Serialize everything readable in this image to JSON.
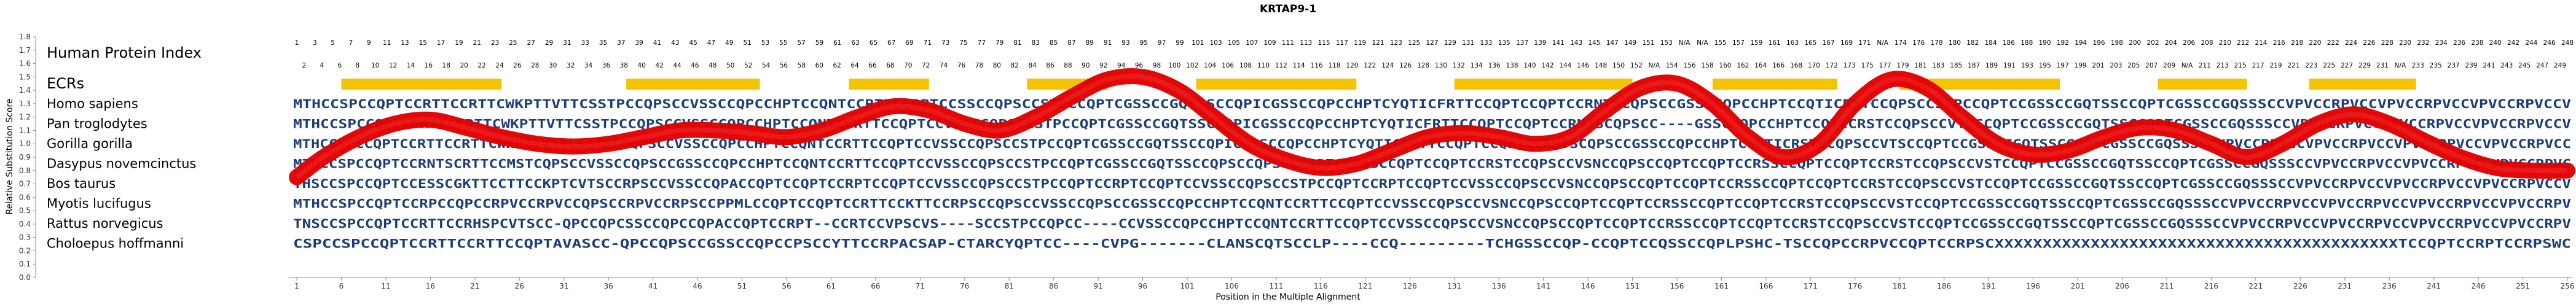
{
  "title": "KRTAP9-1",
  "index_label": "Human Protein Index",
  "ecrs_label": "ECRs",
  "species": [
    {
      "name": "Homo sapiens",
      "seq": "MTHCCSPCCQPTCCRTTCCRTTCWKPTTVTTCSSTPCCQPSCCVSSCCQPCCHPTCCQNTCCRTTCCQPTCCSSCCQPSCCSTPCCQPTCGSSCCGQTSSCCQPICGSSCCQPCCHPTCYQTICFRTTCCQPTCCQPTCCRNTSCQPSCCGSSCCQPCCHPTCCQTICRSTCCQPSCCSTPCCQPTCCGSSCCGQTSSCCQPTCGSSCCGQSSSCCVPVCCRPVCCVPVCCRPVCCVPVCCRPVCCV"
    },
    {
      "name": "Pan troglodytes",
      "seq": "MTHCCSPCCQPTCCRTTCCRTTCWKPTTVTTCSSTPCCQPSCCVSSCCQPCCHPTCCQNTCCRTTCCQPTCCVSSCCQPSCCSTPCCQPTCGSSCCGQTSSCCQPICGSSCCQPCCHPTCYQTICFRTTCCQPTCCQPTCCRNTSCQPSCC----GSSCCQPCCHPTCCQTICRSTCCQPSCCVTSCCQPTCCGSSCCGQTSSCCQPTCGSSCCGQSSSCCVPVCCRPVCCVPVCCRPVCCVPVCCRPVCCV"
    },
    {
      "name": "Gorilla gorilla",
      "seq": "MTHCCSPCCQPTCCRTTCCRTTCWKPTTVTTCSSTPCCQPSCCVSSCCQPCCHPTCCQNTCCRTTCCQPTCCVSSCCQPSCCSTPCCQPTCGSSCCGQTSSCCQPICGSSCCQPCCHPTCYQTICFRTTCCQPTCCQPTCCRNTSCQPSCCGSSCCQPCCHPTCCQTICRSTCCQPSCCVTSCCQPTCCGSSCCGQTSSCCQPTCGSSCCGQSSSCCVPVCCRPVCCVPVCCRPVCCVPVCCRPVCCVPVCCRPVCC"
    },
    {
      "name": "Dasypus novemcinctus",
      "seq": "MTHCCSPCCQPTCCRNTSCRTTCCMSTCQPSCCVSSCCQPSCCGSSCCQPCCHPTCCQNTCCRTTCCQPTCCVSSCCQPSCCSTPCCQPTCGSSCCGQTSSCCQPSCCQPSVCCQPTCCRSSCCQPTCCQPTCCRSTCCQPSCCVSNCCQPSCCQPTCCQPTCCRSSCCQPTCCQPTCCRSTCCQPSCCVSTCCQPTCCGSSCCGQTSSCCQPTCGSSCCGQSSSCCVPVCCRPVCCVPVCCRPVCCVPVCCRPVC"
    },
    {
      "name": "Bos taurus",
      "seq": "THSCCSPCCQPTCCESSCGKTTCCTTCCKPTCVTSCCRPSCCVSSCCQPACCQPTCCQPTCCRPTCCQPTCCVSSCCQPSCCSTPCCQPTCCRPTCCQPTCCVSSCCQPSCCSTPCCQPTCCRPTCCQPTCCVSSCCQPSCCVSNCCQPSCCQPTCCQPTCCRSSCCQPTCCQPTCCRSTCCQPSCCVSTCCQPTCCGSSCCGQTSSCCQPTCGSSCCGQSSSCCVPVCCRPVCCVPVCCRPVCCVPVCCRPVCCV"
    },
    {
      "name": "Myotis lucifugus",
      "seq": "MTHCCSPCCQPTCCRPCCQPCCRPVCCRPVCCQPSCCRPVCCRPSCCPPMLCCQPTCCQPTCCRTTCCKTTCCRPSCCQPSCCVSSCCQPSCCGSSCCQPCCHPTCCQNTCCRTTCCQPTCCVSSCCQPSCCVSNCCQPSCCQPTCCQPTCCRSSCCQPTCCQPTCCRSTCCQPSCCVSTCCQPTCCGSSCCGQTSSCCQPTCGSSCCGQSSSCCVPVCCRPVCCVPVCCRPVCCVPVCCRPVCCVPVCCRPV"
    },
    {
      "name": "Rattus norvegicus",
      "seq": "TNSCCSPCCQPTCCRTTCCRHSPCVTSCC-QPCCQPCSSCCQPCCQPACCQPTCCRPT--CCRTCCVPSCVS----SCCSTPCCQPCC----CCVSSCCQPCCHPTCCQNTCCRTTCCQPTCCVSSCCQPSCCVSNCCQPSCCQPTCCQPTCCRSSCCQPTCCQPTCCRSTCCQPSCCVSTCCQPTCCGSSCCGQTSSCCQPTCGSSCCGQSSSCCVPVCCRPVCCVPVCCRPVCCVPVCCRPVCCVPVCCRPV"
    },
    {
      "name": "Choloepus hoffmanni",
      "seq": "CSPCCSPCCQPTCCRTTCCRTTCCQPTAVASCC-QPCCQPSCCGSSCCQPCCPSCCYTTCCRPACSAP-CTARCYQPTCC----CVPG-------CLANSCQTSCCLP----CCQ---------TCHGSSCCQP-CCQPTCCQSSCCQPLPSHC-TSCCQPCCRPVCCQPTCCRPSCXXXXXXXXXXXXXXXXXXXXXXXXXXXXXXXXXXXXXXXXXXTCCQPTCCRPTCCRPSWC"
    }
  ],
  "positions_top": [
    "1",
    "3",
    "5",
    "7",
    "9",
    "11",
    "13",
    "15",
    "17",
    "19",
    "21",
    "23",
    "25",
    "27",
    "29",
    "31",
    "33",
    "35",
    "37",
    "39",
    "41",
    "43",
    "45",
    "47",
    "49",
    "51",
    "53",
    "55",
    "57",
    "59",
    "61",
    "63",
    "65",
    "67",
    "69",
    "71",
    "73",
    "75",
    "77",
    "79",
    "81",
    "83",
    "85",
    "87",
    "89",
    "91",
    "93",
    "95",
    "97",
    "99",
    "101",
    "103",
    "105",
    "107",
    "109",
    "111",
    "113",
    "115",
    "117",
    "119",
    "121",
    "123",
    "125",
    "127",
    "129",
    "131",
    "133",
    "135",
    "137",
    "139",
    "141",
    "143",
    "145",
    "147",
    "149",
    "151",
    "153",
    "N/A",
    "N/A",
    "155",
    "157",
    "159",
    "161",
    "163",
    "165",
    "167",
    "169",
    "171",
    "N/A",
    "174",
    "176",
    "178",
    "180",
    "182",
    "184",
    "186",
    "188",
    "190",
    "192",
    "194",
    "196",
    "198",
    "200",
    "202",
    "204",
    "206",
    "208",
    "210",
    "212",
    "214",
    "216",
    "218",
    "220",
    "222",
    "224",
    "226",
    "228",
    "230",
    "232",
    "234",
    "236",
    "238",
    "240",
    "242",
    "244",
    "246",
    "248"
  ],
  "positions_bottom": [
    "2",
    "4",
    "6",
    "8",
    "10",
    "12",
    "14",
    "16",
    "18",
    "20",
    "22",
    "24",
    "26",
    "28",
    "30",
    "32",
    "34",
    "36",
    "38",
    "40",
    "42",
    "44",
    "46",
    "48",
    "50",
    "52",
    "54",
    "56",
    "58",
    "60",
    "62",
    "64",
    "66",
    "68",
    "70",
    "72",
    "74",
    "76",
    "78",
    "80",
    "82",
    "84",
    "86",
    "88",
    "90",
    "92",
    "94",
    "96",
    "98",
    "100",
    "102",
    "104",
    "106",
    "108",
    "110",
    "112",
    "114",
    "116",
    "118",
    "120",
    "122",
    "124",
    "126",
    "128",
    "130",
    "132",
    "134",
    "136",
    "138",
    "140",
    "142",
    "144",
    "146",
    "148",
    "150",
    "152",
    "N/A",
    "154",
    "156",
    "158",
    "160",
    "162",
    "164",
    "166",
    "168",
    "170",
    "172",
    "173",
    "175",
    "177",
    "179",
    "181",
    "183",
    "185",
    "187",
    "189",
    "191",
    "193",
    "195",
    "197",
    "199",
    "201",
    "203",
    "205",
    "207",
    "209",
    "N/A",
    "211",
    "213",
    "215",
    "217",
    "219",
    "221",
    "223",
    "225",
    "227",
    "229",
    "231",
    "N/A",
    "233",
    "235",
    "237",
    "239",
    "241",
    "243",
    "245",
    "247",
    "249"
  ],
  "ecr_regions": [
    [
      6,
      24
    ],
    [
      38,
      53
    ],
    [
      63,
      72
    ],
    [
      83,
      92
    ],
    [
      102,
      120
    ],
    [
      131,
      151
    ],
    [
      160,
      174
    ],
    [
      181,
      199
    ],
    [
      210,
      220
    ],
    [
      227,
      239
    ]
  ],
  "y_ticks": [
    "1.8",
    "1.7",
    "1.6",
    "1.5",
    "1.4",
    "1.3",
    "1.2",
    "1.1",
    "1.0",
    "0.9",
    "0.8",
    "0.7",
    "0.6",
    "0.5",
    "0.4",
    "0.3",
    "0.2",
    "0.1",
    "0.0"
  ],
  "y_label": "Relative Substitution Score",
  "x_ticks": [
    "1",
    "6",
    "11",
    "16",
    "21",
    "26",
    "31",
    "36",
    "41",
    "46",
    "51",
    "56",
    "61",
    "66",
    "71",
    "76",
    "81",
    "86",
    "91",
    "96",
    "101",
    "106",
    "111",
    "116",
    "121",
    "126",
    "131",
    "136",
    "141",
    "146",
    "151",
    "156",
    "161",
    "166",
    "171",
    "176",
    "181",
    "186",
    "191",
    "196",
    "201",
    "206",
    "211",
    "216",
    "221",
    "226",
    "231",
    "236",
    "241",
    "246",
    "251",
    "256"
  ],
  "x_label": "Position in the Multiple Alignment",
  "colors": {
    "ecr": "#f5c400",
    "curve": "#e00000",
    "seq": "#1c3e78",
    "seq_m": "#2e6fb2"
  },
  "curve": {
    "type": "substitution score",
    "y_range": [
      0,
      1.8
    ],
    "x_range": [
      1,
      256
    ],
    "points": [
      [
        1,
        0.75
      ],
      [
        4,
        0.9
      ],
      [
        8,
        1.05
      ],
      [
        12,
        1.15
      ],
      [
        16,
        1.18
      ],
      [
        20,
        1.12
      ],
      [
        24,
        1.05
      ],
      [
        28,
        1.0
      ],
      [
        32,
        0.98
      ],
      [
        36,
        1.0
      ],
      [
        40,
        1.05
      ],
      [
        44,
        1.1
      ],
      [
        48,
        1.1
      ],
      [
        52,
        1.08
      ],
      [
        56,
        1.05
      ],
      [
        60,
        1.1
      ],
      [
        64,
        1.2
      ],
      [
        68,
        1.28
      ],
      [
        72,
        1.25
      ],
      [
        76,
        1.15
      ],
      [
        80,
        1.1
      ],
      [
        84,
        1.2
      ],
      [
        88,
        1.35
      ],
      [
        92,
        1.48
      ],
      [
        96,
        1.5
      ],
      [
        100,
        1.4
      ],
      [
        104,
        1.2
      ],
      [
        108,
        1.0
      ],
      [
        112,
        0.88
      ],
      [
        116,
        0.82
      ],
      [
        120,
        0.85
      ],
      [
        124,
        0.95
      ],
      [
        128,
        1.05
      ],
      [
        132,
        1.08
      ],
      [
        136,
        1.05
      ],
      [
        140,
        1.0
      ],
      [
        144,
        1.05
      ],
      [
        148,
        1.25
      ],
      [
        152,
        1.42
      ],
      [
        156,
        1.45
      ],
      [
        160,
        1.3
      ],
      [
        164,
        1.05
      ],
      [
        168,
        0.9
      ],
      [
        172,
        1.0
      ],
      [
        176,
        1.3
      ],
      [
        180,
        1.48
      ],
      [
        184,
        1.42
      ],
      [
        188,
        1.2
      ],
      [
        192,
        1.0
      ],
      [
        196,
        0.92
      ],
      [
        200,
        0.95
      ],
      [
        204,
        1.05
      ],
      [
        208,
        1.12
      ],
      [
        212,
        1.1
      ],
      [
        216,
        1.0
      ],
      [
        220,
        0.9
      ],
      [
        224,
        1.0
      ],
      [
        228,
        1.15
      ],
      [
        232,
        1.22
      ],
      [
        236,
        1.15
      ],
      [
        240,
        1.02
      ],
      [
        244,
        0.9
      ],
      [
        248,
        0.82
      ],
      [
        252,
        0.8
      ],
      [
        256,
        0.8
      ]
    ]
  }
}
